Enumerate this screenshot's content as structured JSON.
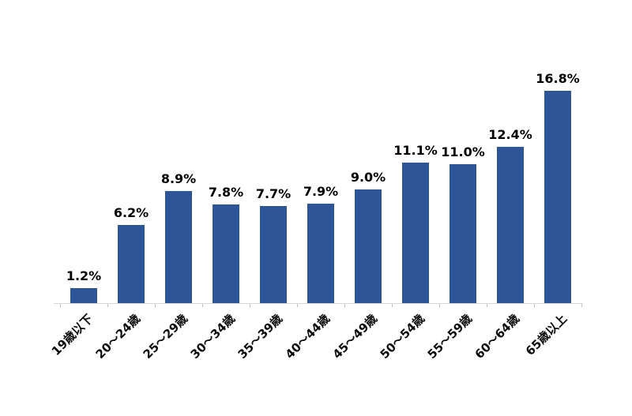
{
  "chart_data": {
    "type": "bar",
    "title": "",
    "xlabel": "",
    "ylabel": "",
    "categories": [
      "19歳以下",
      "20〜24歳",
      "25〜29歳",
      "30〜34歳",
      "35〜39歳",
      "40〜44歳",
      "45〜49歳",
      "50〜54歳",
      "55〜59歳",
      "60〜64歳",
      "65歳以上"
    ],
    "values": [
      1.2,
      6.2,
      8.9,
      7.8,
      7.7,
      7.9,
      9.0,
      11.1,
      11.0,
      12.4,
      16.8
    ],
    "value_labels": [
      "1.2%",
      "6.2%",
      "8.9%",
      "7.8%",
      "7.7%",
      "7.9%",
      "9.0%",
      "11.1%",
      "11.0%",
      "12.4%",
      "16.8%"
    ],
    "ylim": [
      0,
      18
    ],
    "grid": false,
    "legend": "none",
    "colors": {
      "bar": "#2E5596",
      "axis_line": "#D6D6D6",
      "tick": "#C0C0C0",
      "value_label": "#000000",
      "axis_label": "#0A0A0A",
      "background": "#FFFFFF"
    }
  }
}
